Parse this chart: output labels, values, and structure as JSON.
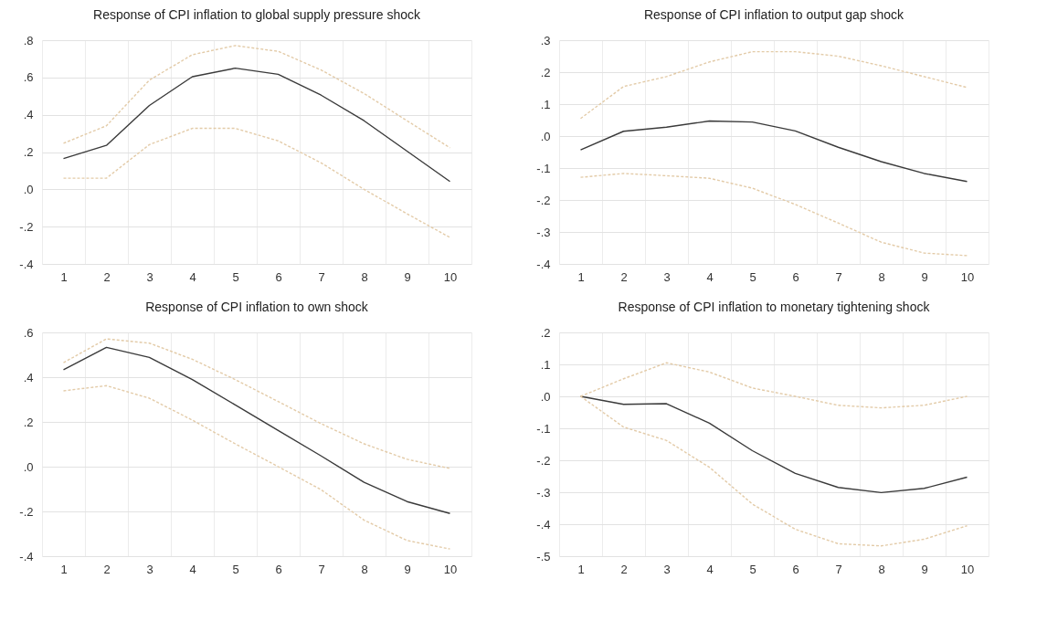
{
  "chart_data": [
    {
      "type": "line",
      "title": "Response of CPI inflation to global supply pressure shock",
      "categories": [
        "1",
        "2",
        "3",
        "4",
        "5",
        "6",
        "7",
        "8",
        "9",
        "10"
      ],
      "ylim": [
        -0.4,
        0.8
      ],
      "yticks": [
        {
          "value": -0.4,
          "label": "-.4"
        },
        {
          "value": -0.2,
          "label": "-.2"
        },
        {
          "value": 0,
          "label": ".0"
        },
        {
          "value": 0.2,
          "label": ".2"
        },
        {
          "value": 0.4,
          "label": ".4"
        },
        {
          "value": 0.6,
          "label": ".6"
        },
        {
          "value": 0.8,
          "label": ".8"
        }
      ],
      "grid": true,
      "series": [
        {
          "color": "#3a3a3a",
          "line_style": "solid",
          "values": [
            0.165,
            0.236,
            0.45,
            0.604,
            0.65,
            0.617,
            0.505,
            0.368,
            0.205,
            0.042
          ]
        },
        {
          "color": "#e3cba8",
          "line_style": "dashed",
          "values": [
            0.247,
            0.341,
            0.586,
            0.722,
            0.771,
            0.74,
            0.64,
            0.514,
            0.368,
            0.223
          ]
        },
        {
          "color": "#e3cba8",
          "line_style": "dashed",
          "values": [
            0.06,
            0.06,
            0.24,
            0.327,
            0.327,
            0.26,
            0.142,
            0.0,
            -0.131,
            -0.258
          ]
        }
      ]
    },
    {
      "type": "line",
      "title": "Response of CPI inflation to output gap shock",
      "categories": [
        "1",
        "2",
        "3",
        "4",
        "5",
        "6",
        "7",
        "8",
        "9",
        "10"
      ],
      "ylim": [
        -0.4,
        0.3
      ],
      "yticks": [
        {
          "value": -0.4,
          "label": "-.4"
        },
        {
          "value": -0.3,
          "label": "-.3"
        },
        {
          "value": -0.2,
          "label": "-.2"
        },
        {
          "value": -0.1,
          "label": "-.1"
        },
        {
          "value": 0,
          "label": ".0"
        },
        {
          "value": 0.1,
          "label": ".1"
        },
        {
          "value": 0.2,
          "label": ".2"
        },
        {
          "value": 0.3,
          "label": ".3"
        }
      ],
      "grid": true,
      "series": [
        {
          "color": "#3a3a3a",
          "line_style": "solid",
          "values": [
            -0.043,
            0.015,
            0.028,
            0.047,
            0.044,
            0.016,
            -0.035,
            -0.08,
            -0.117,
            -0.142
          ]
        },
        {
          "color": "#e3cba8",
          "line_style": "dashed",
          "values": [
            0.055,
            0.155,
            0.186,
            0.232,
            0.264,
            0.264,
            0.25,
            0.22,
            0.186,
            0.152
          ]
        },
        {
          "color": "#e3cba8",
          "line_style": "dashed",
          "values": [
            -0.129,
            -0.117,
            -0.124,
            -0.132,
            -0.163,
            -0.214,
            -0.272,
            -0.332,
            -0.366,
            -0.374
          ]
        }
      ]
    },
    {
      "type": "line",
      "title": "Response of CPI inflation to own shock",
      "categories": [
        "1",
        "2",
        "3",
        "4",
        "5",
        "6",
        "7",
        "8",
        "9",
        "10"
      ],
      "ylim": [
        -0.4,
        0.6
      ],
      "yticks": [
        {
          "value": -0.4,
          "label": "-.4"
        },
        {
          "value": -0.2,
          "label": "-.2"
        },
        {
          "value": 0,
          "label": ".0"
        },
        {
          "value": 0.2,
          "label": ".2"
        },
        {
          "value": 0.4,
          "label": ".4"
        },
        {
          "value": 0.6,
          "label": ".6"
        }
      ],
      "grid": true,
      "series": [
        {
          "color": "#3a3a3a",
          "line_style": "solid",
          "values": [
            0.433,
            0.533,
            0.488,
            0.389,
            0.276,
            0.162,
            0.048,
            -0.07,
            -0.156,
            -0.209
          ]
        },
        {
          "color": "#e3cba8",
          "line_style": "dashed",
          "values": [
            0.465,
            0.571,
            0.552,
            0.48,
            0.389,
            0.291,
            0.192,
            0.102,
            0.033,
            -0.008
          ]
        },
        {
          "color": "#e3cba8",
          "line_style": "dashed",
          "values": [
            0.339,
            0.362,
            0.306,
            0.208,
            0.102,
            0.0,
            -0.103,
            -0.239,
            -0.33,
            -0.368
          ]
        }
      ]
    },
    {
      "type": "line",
      "title": "Response of CPI inflation to monetary tightening shock",
      "categories": [
        "1",
        "2",
        "3",
        "4",
        "5",
        "6",
        "7",
        "8",
        "9",
        "10"
      ],
      "ylim": [
        -0.5,
        0.2
      ],
      "yticks": [
        {
          "value": -0.5,
          "label": "-.5"
        },
        {
          "value": -0.4,
          "label": "-.4"
        },
        {
          "value": -0.3,
          "label": "-.3"
        },
        {
          "value": -0.2,
          "label": "-.2"
        },
        {
          "value": -0.1,
          "label": "-.1"
        },
        {
          "value": 0,
          "label": ".0"
        },
        {
          "value": 0.1,
          "label": ".1"
        },
        {
          "value": 0.2,
          "label": ".2"
        }
      ],
      "grid": true,
      "series": [
        {
          "color": "#3a3a3a",
          "line_style": "solid",
          "values": [
            0,
            -0.025,
            -0.023,
            -0.084,
            -0.17,
            -0.241,
            -0.285,
            -0.301,
            -0.288,
            -0.253
          ]
        },
        {
          "color": "#e3cba8",
          "line_style": "dashed",
          "values": [
            0,
            0.055,
            0.105,
            0.076,
            0.026,
            0.0,
            -0.028,
            -0.036,
            -0.028,
            0
          ]
        },
        {
          "color": "#e3cba8",
          "line_style": "dashed",
          "values": [
            0,
            -0.096,
            -0.138,
            -0.222,
            -0.337,
            -0.416,
            -0.461,
            -0.468,
            -0.447,
            -0.405
          ]
        }
      ]
    }
  ]
}
